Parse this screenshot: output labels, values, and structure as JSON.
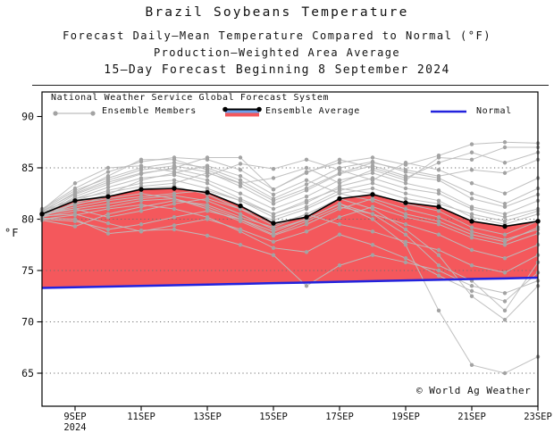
{
  "header": {
    "title": "Brazil Soybeans Temperature",
    "subtitle1": "Forecast Daily–Mean Temperature Compared to Normal (°F)",
    "subtitle2": "Production–Weighted Area Average",
    "subtitle3": "15–Day Forecast Beginning 8 September 2024"
  },
  "legend": {
    "source": "National Weather Service Global Forecast System",
    "members_label": "Ensemble Members",
    "average_label": "Ensemble Average",
    "normal_label": "Normal"
  },
  "watermark": "© World Ag Weather",
  "colors": {
    "ensemble_member": "#bdbdbd",
    "ensemble_member_dot": "#a3a3a3",
    "ensemble_average": "#000000",
    "anomaly_fill": "#f4585c",
    "normal": "#2222dd",
    "legend_average_blue": "#6fa0ec",
    "gridline": "#6e6e6e",
    "axis": "#000000"
  },
  "chart_data": {
    "type": "line",
    "title": "Brazil Soybeans Temperature",
    "xlabel": "",
    "ylabel": "°F",
    "ylim": [
      61.8,
      92.4
    ],
    "grid": "horizontal-dotted",
    "legend_position": "top-left-inside",
    "days": [
      "8SEP",
      "9SEP",
      "10SEP",
      "11SEP",
      "12SEP",
      "13SEP",
      "14SEP",
      "15SEP",
      "16SEP",
      "17SEP",
      "18SEP",
      "19SEP",
      "20SEP",
      "21SEP",
      "22SEP",
      "23SEP"
    ],
    "x_tick_labels": [
      "9SEP",
      "11SEP",
      "13SEP",
      "15SEP",
      "17SEP",
      "19SEP",
      "21SEP",
      "23SEP"
    ],
    "x_tick_days": [
      1,
      3,
      5,
      7,
      9,
      11,
      13,
      15
    ],
    "x_tick_year": "2024",
    "y_ticks": [
      65,
      70,
      75,
      80,
      85,
      90
    ],
    "y_gridlines": [
      65,
      70,
      75,
      80,
      85
    ],
    "series": [
      {
        "name": "Ensemble Average",
        "values": [
          80.5,
          81.8,
          82.2,
          82.9,
          83.0,
          82.6,
          81.3,
          79.6,
          80.2,
          82.0,
          82.4,
          81.6,
          81.2,
          79.8,
          79.3,
          79.8
        ]
      },
      {
        "name": "Normal",
        "values": [
          73.3,
          73.37,
          73.43,
          73.5,
          73.57,
          73.63,
          73.7,
          73.77,
          73.83,
          73.9,
          73.97,
          74.03,
          74.1,
          74.17,
          74.23,
          74.3
        ]
      }
    ],
    "ensemble_members": [
      [
        80.4,
        82.0,
        83.1,
        84.0,
        84.3,
        83.5,
        82.0,
        80.5,
        81.6,
        83.2,
        84.0,
        83.0,
        82.5,
        81.0,
        80.2,
        81.0
      ],
      [
        80.8,
        82.5,
        83.8,
        84.8,
        85.2,
        84.6,
        83.2,
        81.5,
        82.8,
        84.4,
        85.2,
        84.2,
        83.8,
        82.0,
        81.2,
        82.4
      ],
      [
        81.0,
        83.0,
        84.6,
        85.6,
        86.0,
        85.8,
        84.8,
        82.9,
        84.6,
        85.5,
        86.0,
        85.3,
        86.2,
        87.3,
        87.5,
        87.4
      ],
      [
        80.2,
        81.5,
        82.0,
        82.5,
        82.0,
        81.0,
        79.8,
        78.4,
        79.5,
        81.0,
        82.0,
        81.0,
        80.2,
        78.8,
        78.0,
        79.0
      ],
      [
        80.0,
        79.8,
        79.0,
        79.5,
        80.2,
        80.8,
        80.0,
        78.8,
        80.0,
        81.5,
        80.5,
        79.5,
        78.5,
        77.0,
        76.2,
        77.5
      ],
      [
        80.6,
        81.0,
        80.2,
        80.8,
        81.5,
        82.0,
        81.0,
        79.9,
        81.0,
        82.5,
        83.0,
        82.0,
        81.5,
        80.5,
        79.8,
        80.8
      ],
      [
        80.3,
        80.5,
        79.6,
        78.8,
        79.4,
        80.0,
        79.0,
        77.8,
        78.8,
        80.2,
        81.2,
        80.2,
        79.5,
        78.2,
        77.5,
        78.6
      ],
      [
        80.9,
        82.8,
        84.0,
        85.0,
        85.5,
        85.0,
        83.8,
        82.0,
        83.4,
        85.0,
        85.6,
        84.6,
        84.0,
        82.5,
        81.5,
        83.0
      ],
      [
        80.1,
        80.0,
        78.6,
        78.9,
        79.0,
        78.4,
        77.5,
        76.5,
        73.5,
        75.5,
        76.5,
        75.8,
        75.0,
        73.5,
        72.8,
        74.0
      ],
      [
        80.7,
        81.8,
        82.8,
        83.5,
        83.8,
        83.0,
        81.8,
        80.2,
        81.2,
        82.8,
        83.5,
        82.5,
        81.8,
        80.2,
        79.5,
        80.5
      ],
      [
        80.5,
        81.2,
        81.8,
        82.2,
        82.5,
        82.8,
        81.8,
        80.5,
        81.8,
        83.0,
        82.5,
        81.5,
        80.8,
        79.2,
        78.5,
        79.8
      ],
      [
        80.3,
        82.2,
        83.4,
        84.4,
        85.0,
        86.0,
        86.0,
        82.9,
        84.5,
        85.8,
        85.0,
        84.0,
        85.5,
        86.5,
        85.5,
        86.5
      ],
      [
        80.4,
        81.0,
        81.5,
        82.0,
        82.3,
        81.8,
        80.5,
        79.0,
        80.0,
        81.5,
        80.0,
        77.5,
        71.1,
        65.8,
        65.0,
        66.6
      ],
      [
        80.6,
        81.4,
        82.2,
        83.0,
        83.2,
        82.4,
        81.0,
        79.4,
        80.5,
        82.0,
        81.0,
        79.0,
        76.5,
        72.5,
        70.2,
        73.5
      ],
      [
        80.2,
        80.8,
        81.2,
        81.8,
        82.0,
        81.2,
        80.0,
        78.5,
        79.8,
        81.2,
        80.5,
        78.5,
        75.5,
        74.0,
        71.1,
        75.8
      ],
      [
        80.9,
        83.5,
        85.0,
        85.2,
        84.6,
        83.8,
        82.5,
        81.0,
        82.2,
        83.8,
        84.5,
        83.5,
        82.8,
        81.2,
        80.5,
        81.8
      ],
      [
        80.5,
        82.4,
        83.6,
        84.5,
        84.9,
        84.2,
        85.4,
        84.9,
        85.8,
        84.8,
        83.8,
        85.5,
        84.8,
        83.5,
        82.5,
        84.0
      ],
      [
        80.0,
        80.4,
        81.0,
        81.4,
        81.0,
        80.2,
        78.8,
        77.2,
        76.8,
        78.5,
        77.5,
        76.2,
        74.5,
        73.0,
        72.0,
        74.8
      ],
      [
        80.8,
        82.0,
        82.6,
        83.2,
        83.5,
        84.5,
        83.5,
        81.8,
        83.0,
        84.5,
        85.5,
        84.8,
        84.2,
        84.8,
        84.5,
        85.8
      ],
      [
        80.3,
        81.6,
        82.4,
        83.8,
        84.5,
        85.2,
        84.2,
        82.4,
        83.8,
        82.5,
        81.8,
        80.5,
        79.8,
        78.5,
        77.8,
        79.2
      ],
      [
        79.9,
        79.3,
        80.5,
        81.2,
        81.8,
        81.4,
        80.2,
        79.2,
        80.5,
        79.5,
        78.8,
        77.8,
        77.0,
        75.5,
        74.8,
        76.5
      ],
      [
        80.7,
        82.6,
        84.2,
        85.8,
        85.8,
        84.8,
        83.5,
        84.0,
        85.0,
        83.5,
        84.8,
        83.8,
        86.0,
        85.8,
        87.0,
        87.0
      ]
    ]
  }
}
